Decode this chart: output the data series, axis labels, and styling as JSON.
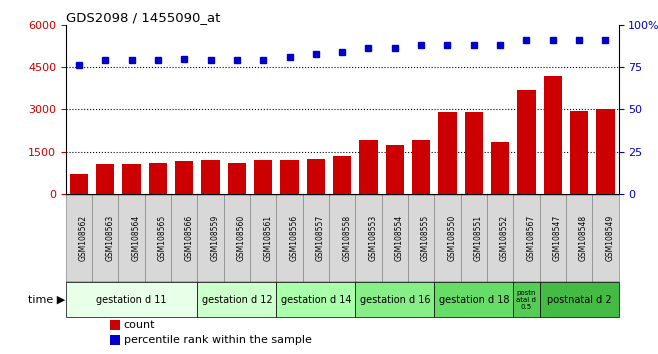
{
  "title": "GDS2098 / 1455090_at",
  "samples": [
    "GSM108562",
    "GSM108563",
    "GSM108564",
    "GSM108565",
    "GSM108566",
    "GSM108559",
    "GSM108560",
    "GSM108561",
    "GSM108556",
    "GSM108557",
    "GSM108558",
    "GSM108553",
    "GSM108554",
    "GSM108555",
    "GSM108550",
    "GSM108551",
    "GSM108552",
    "GSM108567",
    "GSM108547",
    "GSM108548",
    "GSM108549"
  ],
  "bar_values": [
    700,
    1050,
    1050,
    1100,
    1150,
    1200,
    1100,
    1200,
    1200,
    1250,
    1350,
    1900,
    1750,
    1900,
    2900,
    2900,
    1850,
    3700,
    4200,
    2950,
    3000
  ],
  "dot_values_pct": [
    76,
    79,
    79,
    79,
    80,
    79,
    79,
    79,
    81,
    83,
    84,
    86,
    86,
    88,
    88,
    88,
    88,
    91,
    91,
    91,
    91
  ],
  "bar_color": "#cc0000",
  "dot_color": "#0000cc",
  "ylim_left": [
    0,
    6000
  ],
  "ylim_right": [
    0,
    100
  ],
  "yticks_left": [
    0,
    1500,
    3000,
    4500,
    6000
  ],
  "yticks_right": [
    0,
    25,
    50,
    75,
    100
  ],
  "ytick_labels_left": [
    "0",
    "1500",
    "3000",
    "4500",
    "6000"
  ],
  "ytick_labels_right": [
    "0",
    "25",
    "50",
    "75",
    "100%"
  ],
  "groups": [
    {
      "label": "gestation d 11",
      "start": 0,
      "end": 4,
      "color": "#e8ffe8"
    },
    {
      "label": "gestation d 12",
      "start": 5,
      "end": 7,
      "color": "#ccffcc"
    },
    {
      "label": "gestation d 14",
      "start": 8,
      "end": 10,
      "color": "#aaffaa"
    },
    {
      "label": "gestation d 16",
      "start": 11,
      "end": 13,
      "color": "#88ee88"
    },
    {
      "label": "gestation d 18",
      "start": 14,
      "end": 16,
      "color": "#66dd66"
    },
    {
      "label": "postn\natal d\n0.5",
      "start": 17,
      "end": 17,
      "color": "#55cc55"
    },
    {
      "label": "postnatal d 2",
      "start": 18,
      "end": 20,
      "color": "#44bb44"
    }
  ],
  "bg_color": "#ffffff",
  "sample_box_color": "#d8d8d8",
  "sample_box_edge": "#888888"
}
